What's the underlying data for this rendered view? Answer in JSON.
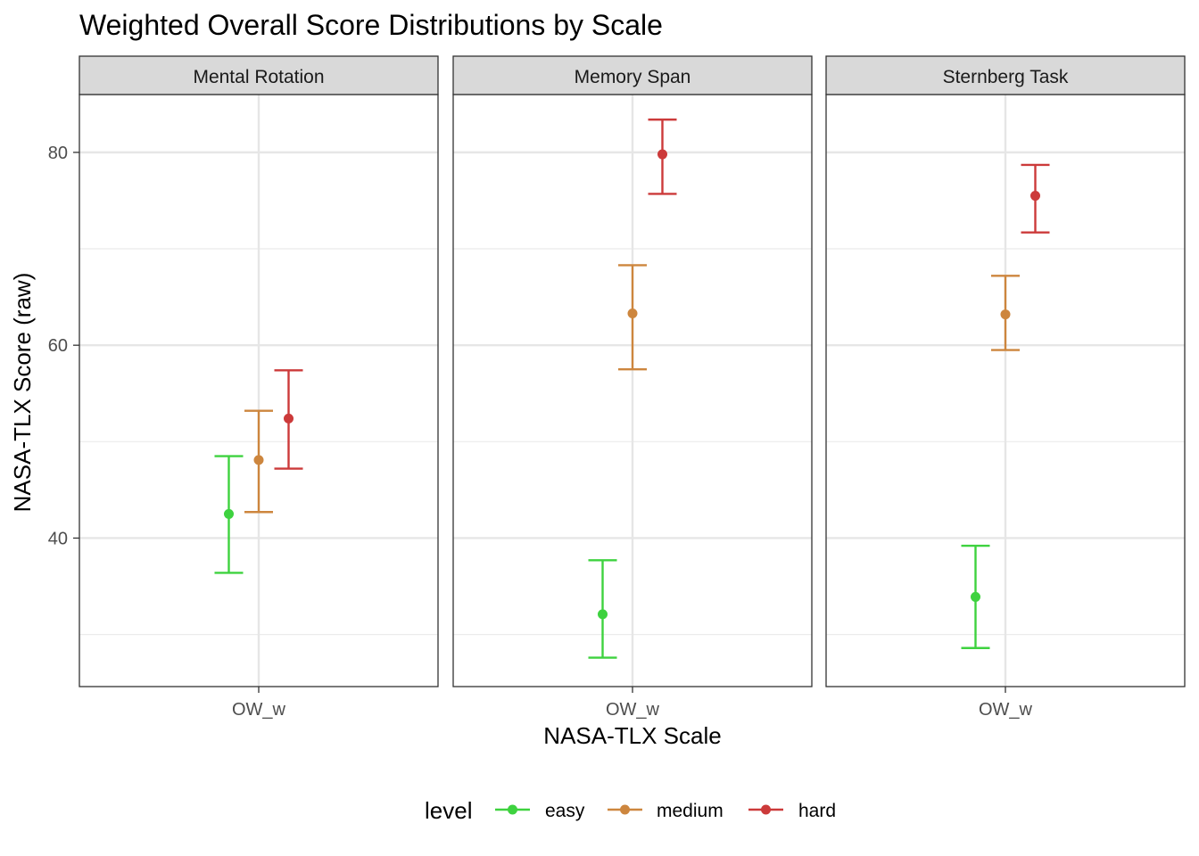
{
  "chart_data": {
    "type": "errorbar",
    "title": "Weighted Overall Score Distributions by Scale",
    "xlabel": "NASA-TLX Scale",
    "ylabel": "NASA-TLX Score (raw)",
    "ylim": [
      24.6,
      86.0
    ],
    "yticks": [
      40,
      60,
      80
    ],
    "y_minor": [
      30,
      50,
      70
    ],
    "category": "OW_w",
    "grid": true,
    "legend": {
      "title": "level",
      "placement": "bottom",
      "entries": [
        {
          "label": "easy",
          "color": "#3ed23f"
        },
        {
          "label": "medium",
          "color": "#cd863e"
        },
        {
          "label": "hard",
          "color": "#cc3a3a"
        }
      ]
    },
    "panels": [
      {
        "name": "Mental Rotation",
        "points": [
          {
            "level": "easy",
            "mean": 42.5,
            "low": 36.4,
            "high": 48.5
          },
          {
            "level": "medium",
            "mean": 48.1,
            "low": 42.7,
            "high": 53.2
          },
          {
            "level": "hard",
            "mean": 52.4,
            "low": 47.2,
            "high": 57.4
          }
        ]
      },
      {
        "name": "Memory Span",
        "points": [
          {
            "level": "easy",
            "mean": 32.1,
            "low": 27.6,
            "high": 37.7
          },
          {
            "level": "medium",
            "mean": 63.3,
            "low": 57.5,
            "high": 68.3
          },
          {
            "level": "hard",
            "mean": 79.8,
            "low": 75.7,
            "high": 83.4
          }
        ]
      },
      {
        "name": "Sternberg Task",
        "points": [
          {
            "level": "easy",
            "mean": 33.9,
            "low": 28.6,
            "high": 39.2
          },
          {
            "level": "medium",
            "mean": 63.2,
            "low": 59.5,
            "high": 67.2
          },
          {
            "level": "hard",
            "mean": 75.5,
            "low": 71.7,
            "high": 78.7
          }
        ]
      }
    ]
  }
}
